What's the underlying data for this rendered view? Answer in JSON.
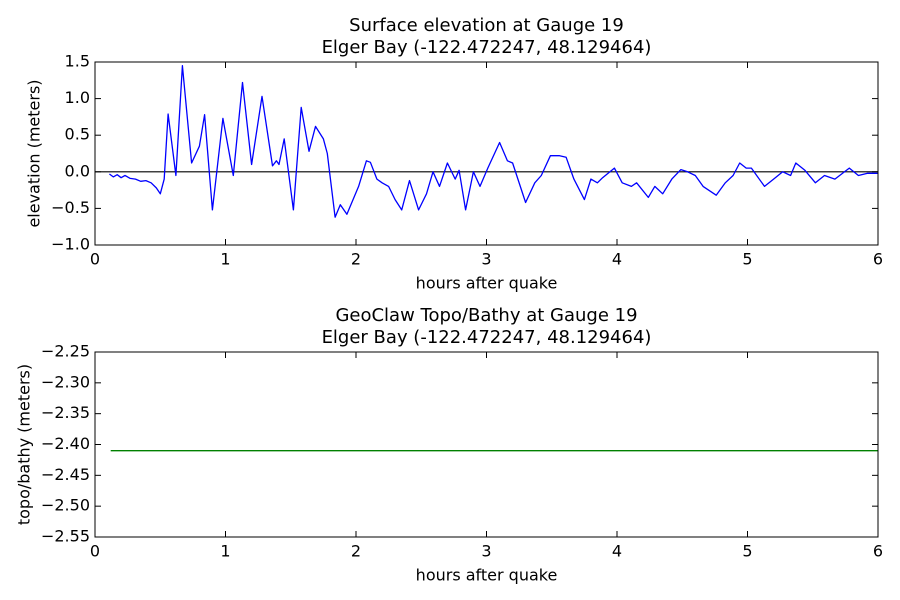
{
  "chart_data": [
    {
      "type": "line",
      "title": "Surface elevation at Gauge 19",
      "subtitle": "Elger Bay  (-122.472247, 48.129464)",
      "xlabel": "hours after quake",
      "ylabel": "elevation (meters)",
      "x": [
        0.11,
        0.14,
        0.17,
        0.2,
        0.23,
        0.27,
        0.31,
        0.35,
        0.39,
        0.43,
        0.47,
        0.5,
        0.53,
        0.56,
        0.62,
        0.67,
        0.74,
        0.8,
        0.84,
        0.9,
        0.98,
        1.06,
        1.13,
        1.2,
        1.28,
        1.36,
        1.39,
        1.41,
        1.45,
        1.52,
        1.58,
        1.64,
        1.69,
        1.75,
        1.78,
        1.84,
        1.88,
        1.93,
        2.02,
        2.08,
        2.11,
        2.16,
        2.2,
        2.25,
        2.3,
        2.35,
        2.41,
        2.48,
        2.54,
        2.59,
        2.64,
        2.7,
        2.76,
        2.79,
        2.84,
        2.9,
        2.95,
        3.01,
        3.1,
        3.16,
        3.2,
        3.3,
        3.37,
        3.42,
        3.49,
        3.56,
        3.61,
        3.67,
        3.75,
        3.8,
        3.85,
        3.89,
        3.98,
        4.04,
        4.11,
        4.15,
        4.24,
        4.29,
        4.35,
        4.42,
        4.49,
        4.54,
        4.6,
        4.66,
        4.76,
        4.83,
        4.89,
        4.94,
        4.99,
        5.03,
        5.13,
        5.2,
        5.27,
        5.33,
        5.37,
        5.44,
        5.52,
        5.59,
        5.67,
        5.78,
        5.85,
        5.92,
        6.0
      ],
      "series": [
        {
          "name": "elevation",
          "color": "#0000ff",
          "values": [
            -0.03,
            -0.07,
            -0.04,
            -0.08,
            -0.05,
            -0.09,
            -0.1,
            -0.13,
            -0.12,
            -0.15,
            -0.22,
            -0.3,
            -0.1,
            0.79,
            -0.05,
            1.45,
            0.12,
            0.35,
            0.78,
            -0.52,
            0.73,
            -0.05,
            1.22,
            0.1,
            1.03,
            0.08,
            0.15,
            0.1,
            0.45,
            -0.52,
            0.88,
            0.28,
            0.62,
            0.45,
            0.25,
            -0.62,
            -0.45,
            -0.58,
            -0.2,
            0.15,
            0.13,
            -0.1,
            -0.15,
            -0.2,
            -0.38,
            -0.52,
            -0.12,
            -0.52,
            -0.3,
            0.0,
            -0.2,
            0.12,
            -0.1,
            0.02,
            -0.52,
            0.0,
            -0.2,
            0.05,
            0.4,
            0.15,
            0.12,
            -0.42,
            -0.15,
            -0.05,
            0.22,
            0.22,
            0.2,
            -0.1,
            -0.38,
            -0.1,
            -0.15,
            -0.08,
            0.05,
            -0.15,
            -0.2,
            -0.15,
            -0.35,
            -0.2,
            -0.3,
            -0.1,
            0.03,
            0.0,
            -0.05,
            -0.2,
            -0.32,
            -0.15,
            -0.05,
            0.12,
            0.05,
            0.05,
            -0.2,
            -0.1,
            0.0,
            -0.05,
            0.12,
            0.02,
            -0.15,
            -0.05,
            -0.1,
            0.05,
            -0.05,
            -0.02,
            -0.02
          ]
        }
      ],
      "hlines": [
        0
      ],
      "hline_color": "#000000",
      "xlim": [
        0,
        6
      ],
      "xticks": [
        0,
        1,
        2,
        3,
        4,
        5,
        6
      ],
      "ylim": [
        -1.0,
        1.5
      ],
      "yticks": [
        {
          "value": -1.0,
          "label": "−1.0"
        },
        {
          "value": -0.5,
          "label": "−0.5"
        },
        {
          "value": 0,
          "label": "0.0"
        },
        {
          "value": 0.5,
          "label": "0.5"
        },
        {
          "value": 1.0,
          "label": "1.0"
        },
        {
          "value": 1.5,
          "label": "1.5"
        }
      ]
    },
    {
      "type": "line",
      "title": "GeoClaw Topo/Bathy at Gauge 19",
      "subtitle": "Elger Bay  (-122.472247, 48.129464)",
      "xlabel": "hours after quake",
      "ylabel": "topo/bathy (meters)",
      "x": [
        0.12,
        6.0
      ],
      "series": [
        {
          "name": "topo/bathy",
          "color": "#008000",
          "values": [
            -2.41,
            -2.41
          ]
        }
      ],
      "xlim": [
        0,
        6
      ],
      "xticks": [
        0,
        1,
        2,
        3,
        4,
        5,
        6
      ],
      "ylim": [
        -2.55,
        -2.25
      ],
      "yticks": [
        {
          "value": -2.55,
          "label": "−2.55"
        },
        {
          "value": -2.5,
          "label": "−2.50"
        },
        {
          "value": -2.45,
          "label": "−2.45"
        },
        {
          "value": -2.4,
          "label": "−2.40"
        },
        {
          "value": -2.35,
          "label": "−2.35"
        },
        {
          "value": -2.3,
          "label": "−2.30"
        },
        {
          "value": -2.25,
          "label": "−2.25"
        }
      ]
    }
  ]
}
